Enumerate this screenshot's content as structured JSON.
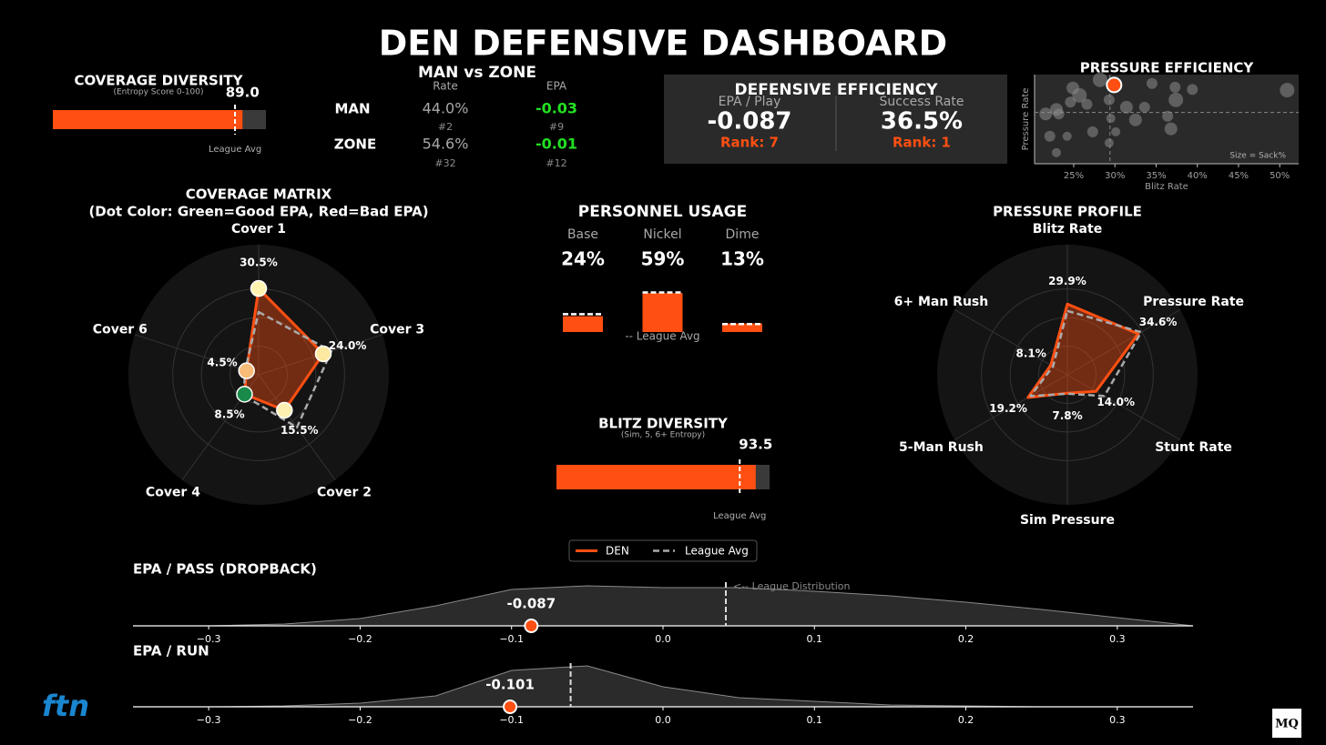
{
  "title": "DEN DEFENSIVE DASHBOARD",
  "man_zone": {
    "title": "MAN vs ZONE",
    "columns": [
      "Rate",
      "EPA"
    ],
    "rows": [
      {
        "label": "MAN",
        "rate": "44.0%",
        "epa": "-0.03",
        "rate_rank": "#2",
        "epa_rank": "#9"
      },
      {
        "label": "ZONE",
        "rate": "54.6%",
        "epa": "-0.01",
        "rate_rank": "#32",
        "epa_rank": "#12"
      }
    ]
  },
  "efficiency": {
    "title": "DEFENSIVE EFFICIENCY",
    "metrics": [
      {
        "label": "EPA / Play",
        "value": "-0.087",
        "rank": "Rank: 7"
      },
      {
        "label": "Success Rate",
        "value": "36.5%",
        "rank": "Rank: 1"
      }
    ]
  },
  "logos": {
    "ftn": "ftn",
    "mq": "MQ"
  },
  "chart_data": [
    {
      "type": "gauge",
      "title": "COVERAGE DIVERSITY",
      "subtitle": "(Entropy Score 0-100)",
      "value": 89,
      "value_label": "89.0",
      "league_avg": 85.5,
      "league_avg_label": "League Avg",
      "xlim": [
        0,
        100
      ],
      "color": "#ff4f12"
    },
    {
      "type": "scatter",
      "title": "PRESSURE EFFICIENCY",
      "x_label": "Blitz Rate",
      "y_label": "Pressure Rate",
      "note": "Size = Sack%",
      "xlim": [
        20.25,
        52.3
      ],
      "ylim": [
        24,
        36
      ],
      "xticks": [
        {
          "value": 25,
          "label": "25%"
        },
        {
          "value": 30,
          "label": "30%"
        },
        {
          "value": 35,
          "label": "35%"
        },
        {
          "value": 40,
          "label": "40%"
        },
        {
          "value": 45,
          "label": "45%"
        },
        {
          "value": 50,
          "label": "50%"
        }
      ],
      "avg_x": 29.4,
      "avg_y": 30.9,
      "series": [
        {
          "color": "#8a8a8a",
          "x": [
            24.9,
            25.7,
            26.6,
            22.9,
            21.6,
            23.2,
            24.6,
            28.2,
            29.3,
            29.5,
            31.4,
            32.5,
            33.6,
            34.5,
            37.3,
            37.4,
            36.4,
            36.8,
            39.4,
            50.9,
            22.1,
            24.2,
            27.3,
            29.3,
            22.9,
            30.1
          ],
          "y": [
            34.2,
            33.2,
            32.0,
            31.3,
            30.7,
            30.7,
            32.3,
            35.3,
            32.6,
            30.1,
            31.6,
            29.9,
            31.6,
            34.8,
            34.3,
            32.6,
            30.4,
            28.7,
            34.0,
            33.9,
            27.7,
            27.7,
            28.3,
            26.8,
            25.5,
            28.3
          ],
          "size": [
            7,
            8,
            6,
            7,
            7,
            6,
            6,
            8,
            6,
            5,
            7,
            7,
            6,
            6,
            6,
            8,
            6,
            7,
            6,
            8,
            6,
            5,
            6,
            5,
            5,
            5
          ]
        },
        {
          "color": "#ff4f12",
          "x": [
            29.9
          ],
          "y": [
            34.6
          ],
          "size": [
            8
          ]
        }
      ]
    },
    {
      "type": "radar",
      "title": "COVERAGE MATRIX",
      "subtitle": "(Dot Color: Green=Good EPA, Red=Bad EPA)",
      "categories": [
        "Cover 1",
        "Cover 3",
        "Cover 2",
        "Cover 4",
        "Cover 6"
      ],
      "rlim": [
        0,
        46
      ],
      "series": [
        {
          "color": "#ff4f12",
          "values": [
            30.5,
            24.0,
            15.5,
            8.5,
            4.5
          ],
          "value_labels": [
            "30.5%",
            "24.0%",
            "15.5%",
            "8.5%",
            "4.5%"
          ],
          "point_colors": [
            "#fff3b0",
            "#fde9a0",
            "#fdf0b0",
            "#1a8a4a",
            "#f9bb78"
          ]
        },
        {
          "color": "#aaaaaa",
          "dashed": true,
          "values": [
            22.2,
            27,
            23,
            9,
            5
          ]
        }
      ]
    },
    {
      "type": "bar",
      "title": "PERSONNEL USAGE",
      "categories": [
        "Base",
        "Nickel",
        "Dime"
      ],
      "values": [
        24,
        59,
        13
      ],
      "value_labels": [
        "24%",
        "59%",
        "13%"
      ],
      "league_avg": [
        27,
        60,
        12
      ],
      "league_avg_label": "-- League Avg",
      "ylim": [
        0,
        80
      ],
      "color": "#ff4f12"
    },
    {
      "type": "gauge",
      "title": "BLITZ DIVERSITY",
      "subtitle": "(Sim, 5, 6+ Entropy)",
      "value": 93.5,
      "league_avg": 86,
      "league_avg_label": "League Avg",
      "xlim": [
        0,
        100
      ],
      "color": "#ff4f12"
    },
    {
      "type": "radar",
      "title": "PRESSURE PROFILE",
      "categories": [
        "Blitz Rate",
        "Pressure Rate",
        "Stunt Rate",
        "Sim Pressure",
        "5-Man Rush",
        "6+ Man Rush"
      ],
      "rlim": [
        0,
        55
      ],
      "series": [
        {
          "name": "DEN",
          "color": "#ff4f12",
          "values": [
            29.9,
            34.6,
            14.0,
            7.8,
            19.2,
            8.1
          ],
          "value_labels": [
            "29.9%",
            "34.6%",
            "14.0%",
            "7.8%",
            "19.2%",
            "8.1%"
          ]
        },
        {
          "name": "League Avg",
          "color": "#aaaaaa",
          "dashed": true,
          "values": [
            27,
            36,
            18,
            8,
            18,
            7
          ]
        }
      ]
    },
    {
      "type": "density",
      "title": "EPA / PASS (DROPBACK)",
      "x": [
        -0.35,
        -0.3,
        -0.25,
        -0.2,
        -0.15,
        -0.1,
        -0.05,
        0,
        0.05,
        0.1,
        0.15,
        0.2,
        0.25,
        0.3,
        0.35
      ],
      "density": [
        0,
        0,
        2,
        8,
        22,
        40,
        44,
        42,
        42,
        38,
        33,
        26,
        18,
        9,
        0
      ],
      "ylim": [
        0,
        50
      ],
      "xlim": [
        -0.35,
        0.35
      ],
      "xticks": [
        {
          "value": -0.3,
          "label": "−0.3"
        },
        {
          "value": -0.2,
          "label": "−0.2"
        },
        {
          "value": -0.1,
          "label": "−0.1"
        },
        {
          "value": 0,
          "label": "0.0"
        },
        0.1,
        0.2,
        0.3
      ],
      "value": -0.087,
      "league_avg": 0.0415,
      "annotation": "<-- League Distribution",
      "color": "#ff4f12"
    },
    {
      "type": "density",
      "title": "EPA / RUN",
      "x": [
        -0.35,
        -0.3,
        -0.25,
        -0.2,
        -0.15,
        -0.1,
        -0.05,
        0,
        0.05,
        0.1,
        0.15,
        0.2,
        0.25,
        0.3,
        0.35
      ],
      "density": [
        0,
        0,
        1,
        4,
        12,
        40,
        45,
        22,
        10,
        6,
        2,
        1,
        0,
        0,
        0
      ],
      "ylim": [
        0,
        50
      ],
      "xlim": [
        -0.35,
        0.35
      ],
      "xticks": [
        {
          "value": -0.3,
          "label": "−0.3"
        },
        {
          "value": -0.2,
          "label": "−0.2"
        },
        {
          "value": -0.1,
          "label": "−0.1"
        },
        {
          "value": 0,
          "label": "0.0"
        },
        0.1,
        0.2,
        0.3
      ],
      "value": -0.101,
      "league_avg": -0.061,
      "color": "#ff4f12"
    }
  ]
}
